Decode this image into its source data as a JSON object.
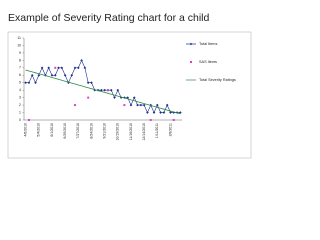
{
  "chart_data": {
    "type": "line",
    "title": "Example of Severity Rating chart for a child",
    "categories": [
      "4/6/2010",
      null,
      null,
      null,
      "5/4/2010",
      null,
      null,
      null,
      "6/1/2010",
      null,
      null,
      null,
      "6/29/2010",
      null,
      null,
      null,
      "7/27/2010",
      null,
      null,
      null,
      "8/24/2010",
      null,
      null,
      null,
      "9/21/2010",
      null,
      null,
      null,
      "10/19/2010",
      null,
      null,
      null,
      "11/16/2010",
      null,
      null,
      null,
      "12/14/2010",
      null,
      null,
      null,
      "1/11/2011",
      null,
      null,
      null,
      "2/8/2011",
      null,
      null,
      null
    ],
    "series": [
      {
        "name": "Total Items",
        "color": "#1f2f8f",
        "line": true,
        "marker": "diamond",
        "values": [
          5,
          5,
          6,
          5,
          6,
          7,
          6,
          7,
          6,
          6,
          7,
          7,
          6,
          5,
          6,
          7,
          7,
          8,
          7,
          5,
          5,
          4,
          4,
          4,
          4,
          4,
          4,
          3,
          4,
          3,
          3,
          3,
          2,
          3,
          2,
          2,
          2,
          1,
          2,
          1,
          2,
          1,
          1,
          2,
          1,
          1,
          1,
          1
        ]
      },
      {
        "name": "SAS Items",
        "color": "#e040c0",
        "line": false,
        "marker": "square",
        "values": [
          null,
          0,
          null,
          null,
          null,
          null,
          null,
          null,
          null,
          7,
          null,
          null,
          null,
          null,
          null,
          2,
          null,
          null,
          null,
          3,
          null,
          null,
          null,
          null,
          null,
          4,
          null,
          null,
          null,
          null,
          2,
          null,
          null,
          null,
          null,
          null,
          null,
          null,
          0,
          null,
          null,
          null,
          null,
          null,
          null,
          0,
          null,
          null
        ]
      },
      {
        "name": "Total Severity Ratings",
        "color": "#2e8b3e",
        "line": true,
        "marker": "none",
        "values": [
          6.7,
          6.58,
          6.45,
          6.33,
          6.2,
          6.08,
          5.95,
          5.83,
          5.7,
          5.58,
          5.45,
          5.33,
          5.2,
          5.08,
          4.95,
          4.83,
          4.7,
          4.58,
          4.45,
          4.33,
          4.2,
          4.08,
          3.95,
          3.83,
          3.7,
          3.58,
          3.45,
          3.33,
          3.2,
          3.08,
          2.95,
          2.83,
          2.7,
          2.58,
          2.45,
          2.33,
          2.2,
          2.08,
          1.95,
          1.83,
          1.7,
          1.58,
          1.45,
          1.33,
          1.2,
          1.08,
          0.95,
          0.83
        ]
      }
    ],
    "ylim": [
      0,
      11
    ],
    "yticks": [
      0,
      1,
      2,
      3,
      4,
      5,
      6,
      7,
      8,
      9,
      10,
      11
    ],
    "grid": false,
    "legend": "right"
  }
}
